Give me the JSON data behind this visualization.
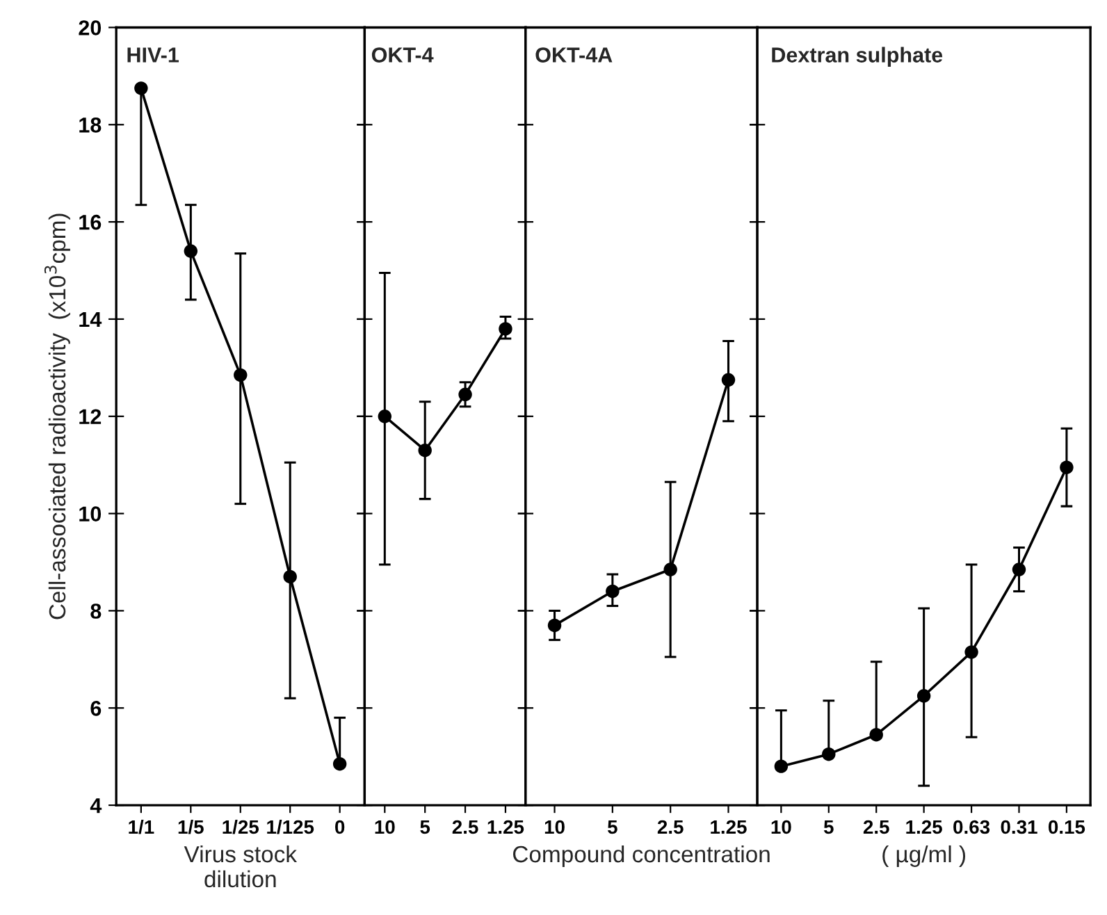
{
  "chart_data": [
    {
      "type": "line",
      "title": "HIV-1",
      "xlabel": "Virus stock\ndilution",
      "ylabel": "Cell-associated radioactivity  (x10$^{3}$cpm)",
      "categories": [
        "1/1",
        "1/5",
        "1/25",
        "1/125",
        "0"
      ],
      "ylim": [
        4,
        20
      ],
      "yticks": [
        4,
        6,
        8,
        10,
        12,
        14,
        16,
        18,
        20
      ],
      "marker": "circle",
      "line_style": "solid",
      "series": [
        {
          "color": "#000000",
          "values": [
            18.75,
            15.4,
            12.85,
            8.7,
            4.85
          ],
          "errors": [
            [
              16.35,
              18.75
            ],
            [
              14.4,
              16.35
            ],
            [
              10.2,
              15.35
            ],
            [
              6.2,
              11.05
            ],
            [
              4.85,
              5.8
            ]
          ]
        }
      ]
    },
    {
      "type": "line",
      "title": "OKT-4",
      "categories": [
        "10",
        "5",
        "2.5",
        "1.25"
      ],
      "ylim": [
        4,
        20
      ],
      "yticks": [
        4,
        6,
        8,
        10,
        12,
        14,
        16,
        18,
        20
      ],
      "tick_labels": "x",
      "marker": "circle",
      "line_style": "solid",
      "series": [
        {
          "color": "#000000",
          "values": [
            12.0,
            11.3,
            12.45,
            13.8
          ],
          "errors": [
            [
              8.95,
              14.95
            ],
            [
              10.3,
              12.3
            ],
            [
              12.2,
              12.7
            ],
            [
              13.6,
              14.05
            ]
          ]
        }
      ]
    },
    {
      "type": "line",
      "title": "OKT-4A",
      "xlabel": "Compound concentration",
      "categories": [
        "10",
        "5",
        "2.5",
        "1.25"
      ],
      "ylim": [
        4,
        20
      ],
      "yticks": [
        4,
        6,
        8,
        10,
        12,
        14,
        16,
        18,
        20
      ],
      "tick_labels": "x",
      "marker": "circle",
      "line_style": "solid",
      "series": [
        {
          "color": "#000000",
          "values": [
            7.7,
            8.4,
            8.85,
            12.75
          ],
          "errors": [
            [
              7.4,
              8.0
            ],
            [
              8.1,
              8.75
            ],
            [
              7.05,
              10.65
            ],
            [
              11.9,
              13.55
            ]
          ]
        }
      ]
    },
    {
      "type": "line",
      "title": "Dextran sulphate",
      "xlabel": "( µg/ml )",
      "categories": [
        "10",
        "5",
        "2.5",
        "1.25",
        "0.63",
        "0.31",
        "0.15"
      ],
      "ylim": [
        4,
        20
      ],
      "yticks": [
        4,
        6,
        8,
        10,
        12,
        14,
        16,
        18,
        20
      ],
      "tick_labels": "x",
      "marker": "circle",
      "line_style": "solid",
      "series": [
        {
          "color": "#000000",
          "values": [
            4.8,
            5.05,
            5.45,
            6.25,
            7.15,
            8.85,
            10.95
          ],
          "errors": [
            [
              4.8,
              5.95
            ],
            [
              5.05,
              6.15
            ],
            [
              5.45,
              6.95
            ],
            [
              4.4,
              8.05
            ],
            [
              5.4,
              8.95
            ],
            [
              8.4,
              9.3
            ],
            [
              10.15,
              11.75
            ]
          ]
        }
      ]
    }
  ]
}
